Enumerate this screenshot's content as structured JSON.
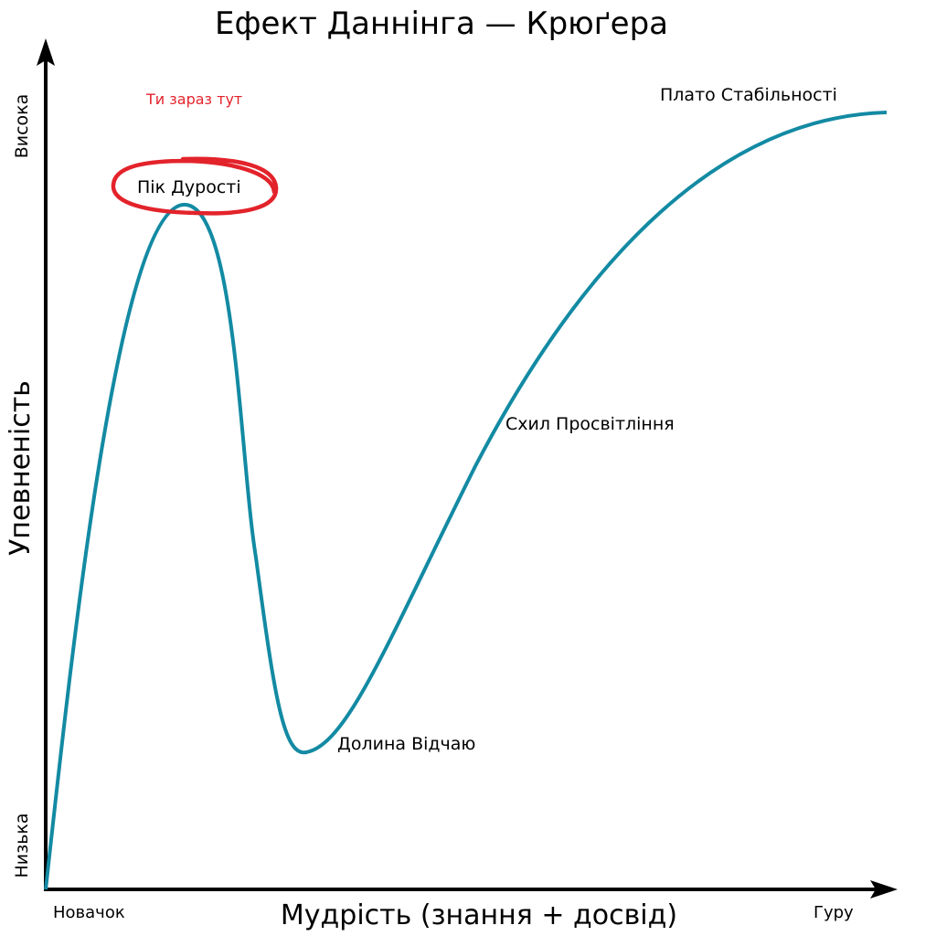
{
  "title": "Ефект Даннінга — Крюґера",
  "y_axis": {
    "label": "Упевненість",
    "high": "Висока",
    "low": "Низька"
  },
  "x_axis": {
    "label": "Мудрість (знання + досвід)",
    "start": "Новачок",
    "end": "Гуру"
  },
  "annotations": {
    "you_are_here": "Ти зараз тут",
    "peak": "Пік Дурості",
    "valley": "Долина Відчаю",
    "slope": "Схил Просвітління",
    "plateau": "Плато Стабільності"
  }
}
